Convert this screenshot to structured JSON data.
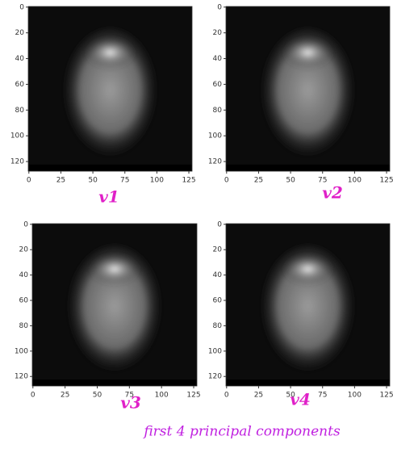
{
  "caption": "first 4 principal components",
  "chart_data": [
    {
      "type": "image",
      "annotation": "v1",
      "xlim": [
        -0.5,
        127.5
      ],
      "ylim": [
        127.5,
        -0.5
      ],
      "xticks": [
        0,
        25,
        50,
        75,
        100,
        125
      ],
      "yticks": [
        0,
        20,
        40,
        60,
        80,
        100,
        120
      ]
    },
    {
      "type": "image",
      "annotation": "v2",
      "xlim": [
        -0.5,
        127.5
      ],
      "ylim": [
        127.5,
        -0.5
      ],
      "xticks": [
        0,
        25,
        50,
        75,
        100,
        125
      ],
      "yticks": [
        0,
        20,
        40,
        60,
        80,
        100,
        120
      ]
    },
    {
      "type": "image",
      "annotation": "v3",
      "xlim": [
        -0.5,
        127.5
      ],
      "ylim": [
        127.5,
        -0.5
      ],
      "xticks": [
        0,
        25,
        50,
        75,
        100,
        125
      ],
      "yticks": [
        0,
        20,
        40,
        60,
        80,
        100,
        120
      ]
    },
    {
      "type": "image",
      "annotation": "v4",
      "xlim": [
        -0.5,
        127.5
      ],
      "ylim": [
        127.5,
        -0.5
      ],
      "xticks": [
        0,
        25,
        50,
        75,
        100,
        125
      ],
      "yticks": [
        0,
        20,
        40,
        60,
        80,
        100,
        120
      ]
    }
  ]
}
